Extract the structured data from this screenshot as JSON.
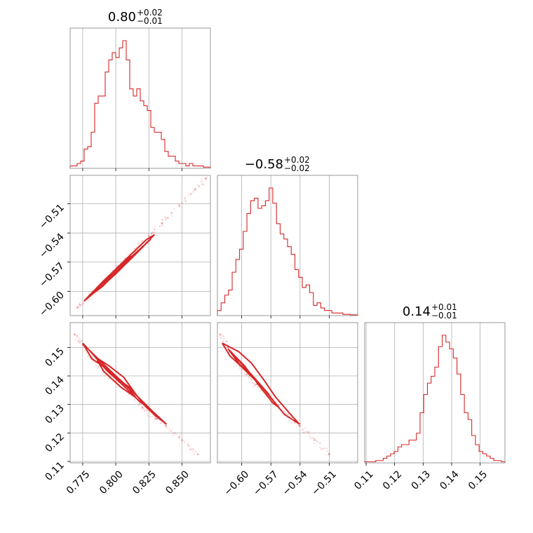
{
  "chart_data": {
    "type": "corner",
    "color": "#d62728",
    "grid": true,
    "parameters": [
      {
        "title_value": "0.80",
        "title_plus": "+0.02",
        "title_minus": "−0.01",
        "range": [
          0.7655,
          0.8715
        ],
        "ticks": [
          0.775,
          0.8,
          0.825,
          0.85
        ],
        "tick_labels": [
          "0.775",
          "0.800",
          "0.825",
          "0.850"
        ]
      },
      {
        "title_value": "−0.58",
        "title_plus": "+0.02",
        "title_minus": "−0.02",
        "range": [
          -0.625,
          -0.4807
        ],
        "ticks": [
          -0.6,
          -0.57,
          -0.54,
          -0.51
        ],
        "tick_labels": [
          "−0.60",
          "−0.57",
          "−0.54",
          "−0.51"
        ]
      },
      {
        "title_value": "0.14",
        "title_plus": "+0.01",
        "title_minus": "−0.01",
        "range": [
          0.1095,
          0.1587
        ],
        "ticks": [
          0.11,
          0.12,
          0.13,
          0.14,
          0.15
        ],
        "tick_labels": [
          "0.11",
          "0.12",
          "0.13",
          "0.14",
          "0.15"
        ]
      }
    ],
    "histograms": [
      {
        "param": 0,
        "counts": [
          1,
          1,
          2,
          3,
          8,
          9,
          15,
          27,
          30,
          30,
          40,
          45,
          48,
          46,
          50,
          53,
          45,
          33,
          30,
          33,
          28,
          26,
          24,
          17,
          15,
          15,
          12,
          7,
          5,
          5,
          3,
          2,
          2,
          1,
          2,
          1,
          1,
          1,
          0.5,
          0.5
        ]
      },
      {
        "param": 1,
        "counts": [
          2,
          5,
          8,
          10,
          17,
          22,
          26,
          33,
          40,
          45,
          46,
          42,
          43,
          45,
          50,
          44,
          36,
          32,
          30,
          27,
          24,
          18,
          15,
          11,
          12,
          9,
          4,
          5,
          3,
          2,
          2,
          1,
          1,
          1,
          0.5,
          0.5,
          0.3,
          0.3
        ]
      },
      {
        "param": 2,
        "counts": [
          0.5,
          0.5,
          0.5,
          1,
          1,
          2,
          3,
          4,
          5,
          7,
          8,
          8,
          10,
          10,
          13,
          22,
          30,
          35,
          38,
          42,
          51,
          56,
          53,
          50,
          46,
          39,
          30,
          22,
          19,
          12,
          8,
          5,
          4,
          3,
          2,
          1,
          1,
          0.5
        ]
      }
    ],
    "scatter_relations": [
      {
        "x": 0,
        "y": 1,
        "points": [
          [
            0.771,
            -0.617
          ],
          [
            0.778,
            -0.608
          ],
          [
            0.786,
            -0.598
          ],
          [
            0.795,
            -0.585
          ],
          [
            0.801,
            -0.576
          ],
          [
            0.808,
            -0.567
          ],
          [
            0.815,
            -0.557
          ],
          [
            0.825,
            -0.543
          ],
          [
            0.835,
            -0.53
          ],
          [
            0.848,
            -0.512
          ],
          [
            0.86,
            -0.495
          ],
          [
            0.868,
            -0.484
          ]
        ]
      },
      {
        "x": 0,
        "y": 2,
        "points": [
          [
            0.769,
            0.1545
          ],
          [
            0.775,
            0.151
          ],
          [
            0.782,
            0.146
          ],
          [
            0.79,
            0.142
          ],
          [
            0.8,
            0.138
          ],
          [
            0.81,
            0.1345
          ],
          [
            0.82,
            0.129
          ],
          [
            0.83,
            0.125
          ],
          [
            0.838,
            0.1225
          ],
          [
            0.85,
            0.1175
          ],
          [
            0.862,
            0.1125
          ]
        ]
      },
      {
        "x": 1,
        "y": 2,
        "points": [
          [
            -0.622,
            0.1545
          ],
          [
            -0.614,
            0.15
          ],
          [
            -0.605,
            0.145
          ],
          [
            -0.595,
            0.1405
          ],
          [
            -0.585,
            0.137
          ],
          [
            -0.574,
            0.1335
          ],
          [
            -0.563,
            0.1295
          ],
          [
            -0.552,
            0.1255
          ],
          [
            -0.54,
            0.1225
          ],
          [
            -0.525,
            0.1175
          ],
          [
            -0.51,
            0.1125
          ]
        ]
      }
    ],
    "contours": [
      {
        "x": 0,
        "y": 1,
        "lines": [
          [
            [
              0.782,
              -0.603
            ],
            [
              0.79,
              -0.595
            ],
            [
              0.8,
              -0.581
            ],
            [
              0.812,
              -0.566
            ],
            [
              0.824,
              -0.549
            ],
            [
              0.826,
              -0.547
            ],
            [
              0.813,
              -0.563
            ],
            [
              0.801,
              -0.578
            ],
            [
              0.789,
              -0.593
            ],
            [
              0.782,
              -0.603
            ]
          ],
          [
            [
              0.776,
              -0.61
            ],
            [
              0.79,
              -0.594
            ],
            [
              0.808,
              -0.571
            ],
            [
              0.82,
              -0.555
            ],
            [
              0.829,
              -0.542
            ],
            [
              0.823,
              -0.547
            ],
            [
              0.807,
              -0.568
            ],
            [
              0.791,
              -0.589
            ],
            [
              0.776,
              -0.61
            ]
          ],
          [
            [
              0.787,
              -0.598
            ],
            [
              0.8,
              -0.582
            ],
            [
              0.814,
              -0.563
            ],
            [
              0.81,
              -0.565
            ],
            [
              0.797,
              -0.584
            ],
            [
              0.787,
              -0.598
            ]
          ]
        ]
      },
      {
        "x": 0,
        "y": 2,
        "lines": [
          [
            [
              0.775,
              0.1515
            ],
            [
              0.782,
              0.146
            ],
            [
              0.79,
              0.1435
            ],
            [
              0.801,
              0.139
            ],
            [
              0.812,
              0.1355
            ],
            [
              0.821,
              0.13
            ],
            [
              0.83,
              0.126
            ],
            [
              0.838,
              0.1232
            ],
            [
              0.828,
              0.1275
            ],
            [
              0.816,
              0.133
            ],
            [
              0.806,
              0.1395
            ],
            [
              0.795,
              0.1435
            ],
            [
              0.785,
              0.1465
            ],
            [
              0.775,
              0.1515
            ]
          ],
          [
            [
              0.78,
              0.149
            ],
            [
              0.79,
              0.1445
            ],
            [
              0.8,
              0.14
            ],
            [
              0.813,
              0.1345
            ],
            [
              0.823,
              0.1295
            ],
            [
              0.818,
              0.131
            ],
            [
              0.806,
              0.1365
            ],
            [
              0.793,
              0.142
            ],
            [
              0.78,
              0.149
            ]
          ],
          [
            [
              0.786,
              0.1455
            ],
            [
              0.798,
              0.1405
            ],
            [
              0.81,
              0.1355
            ],
            [
              0.815,
              0.1325
            ],
            [
              0.804,
              0.136
            ],
            [
              0.791,
              0.1415
            ],
            [
              0.786,
              0.1455
            ]
          ]
        ]
      },
      {
        "x": 1,
        "y": 2,
        "lines": [
          [
            [
              -0.62,
              0.1515
            ],
            [
              -0.612,
              0.147
            ],
            [
              -0.604,
              0.1445
            ],
            [
              -0.592,
              0.1405
            ],
            [
              -0.58,
              0.1365
            ],
            [
              -0.568,
              0.1315
            ],
            [
              -0.556,
              0.1265
            ],
            [
              -0.541,
              0.1232
            ],
            [
              -0.551,
              0.127
            ],
            [
              -0.565,
              0.1325
            ],
            [
              -0.577,
              0.1385
            ],
            [
              -0.59,
              0.1445
            ],
            [
              -0.603,
              0.1485
            ],
            [
              -0.62,
              0.1515
            ]
          ],
          [
            [
              -0.614,
              0.1495
            ],
            [
              -0.602,
              0.144
            ],
            [
              -0.589,
              0.14
            ],
            [
              -0.575,
              0.1345
            ],
            [
              -0.562,
              0.129
            ],
            [
              -0.568,
              0.1305
            ],
            [
              -0.583,
              0.137
            ],
            [
              -0.597,
              0.1435
            ],
            [
              -0.614,
              0.1495
            ]
          ],
          [
            [
              -0.606,
              0.1465
            ],
            [
              -0.594,
              0.142
            ],
            [
              -0.581,
              0.137
            ],
            [
              -0.572,
              0.1335
            ],
            [
              -0.585,
              0.1385
            ],
            [
              -0.598,
              0.1435
            ],
            [
              -0.606,
              0.1465
            ]
          ]
        ]
      }
    ]
  }
}
